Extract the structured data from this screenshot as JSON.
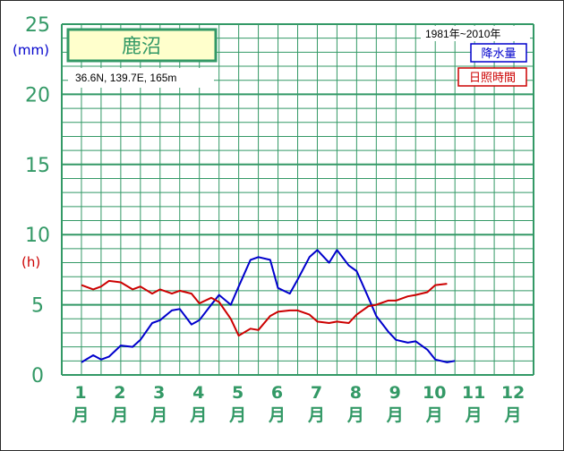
{
  "station": {
    "name": "鹿沼",
    "coords": "36.6N,  139.7E,  165m",
    "period": "1981年~2010年"
  },
  "legend": {
    "precip_label": "降水量",
    "sunshine_label": "日照時間"
  },
  "units": {
    "left_top": "(mm)",
    "left_mid": "(h)"
  },
  "month_suffix": "月",
  "colors": {
    "grid": "#339966",
    "precip": "#0000cc",
    "sunshine": "#cc0000",
    "text": "#339966"
  },
  "chart_data": {
    "type": "line",
    "x": [
      1.0,
      1.3,
      1.5,
      1.7,
      2.0,
      2.3,
      2.5,
      2.8,
      3.0,
      3.3,
      3.5,
      3.8,
      4.0,
      4.3,
      4.5,
      4.8,
      5.0,
      5.3,
      5.5,
      5.8,
      6.0,
      6.3,
      6.5,
      6.8,
      7.0,
      7.3,
      7.5,
      7.8,
      8.0,
      8.3,
      8.5,
      8.8,
      9.0,
      9.3,
      9.5,
      9.8,
      10.0,
      10.3,
      10.5,
      10.8,
      11.0,
      11.3,
      11.5,
      11.8,
      12.0,
      12.3,
      12.5
    ],
    "series": [
      {
        "name": "降水量",
        "color": "#0000cc",
        "values": [
          0.9,
          1.4,
          1.1,
          1.3,
          2.1,
          2.0,
          2.5,
          3.7,
          3.9,
          4.6,
          4.7,
          3.6,
          3.9,
          5.0,
          5.7,
          5.0,
          6.3,
          8.2,
          8.4,
          8.2,
          6.2,
          5.8,
          6.8,
          8.4,
          8.9,
          8.0,
          8.9,
          7.8,
          7.4,
          5.5,
          4.2,
          3.1,
          2.5,
          2.3,
          2.4,
          1.8,
          1.1,
          0.9,
          1.0,
          null,
          null,
          null,
          null,
          null,
          null,
          null,
          null
        ],
        "unit": "mm"
      },
      {
        "name": "日照時間",
        "color": "#cc0000",
        "values": [
          6.4,
          6.1,
          6.3,
          6.7,
          6.6,
          6.1,
          6.3,
          5.8,
          6.1,
          5.8,
          6.0,
          5.8,
          5.1,
          5.5,
          5.2,
          4.0,
          2.8,
          3.3,
          3.2,
          4.2,
          4.5,
          4.6,
          4.6,
          4.3,
          3.8,
          3.7,
          3.8,
          3.7,
          4.3,
          4.9,
          5.0,
          5.3,
          5.3,
          5.6,
          5.7,
          5.9,
          6.4,
          6.5,
          null,
          null,
          null,
          null,
          null,
          null,
          null,
          null,
          null
        ],
        "unit": "h"
      }
    ],
    "xlim": [
      0.5,
      12.5
    ],
    "ylim": [
      0,
      25
    ],
    "yticks": [
      "0",
      "5",
      "10",
      "15",
      "20",
      "25"
    ],
    "xticks": [
      "1",
      "2",
      "3",
      "4",
      "5",
      "6",
      "7",
      "8",
      "9",
      "10",
      "11",
      "12"
    ],
    "grid": true,
    "legend_position": "top-right"
  }
}
